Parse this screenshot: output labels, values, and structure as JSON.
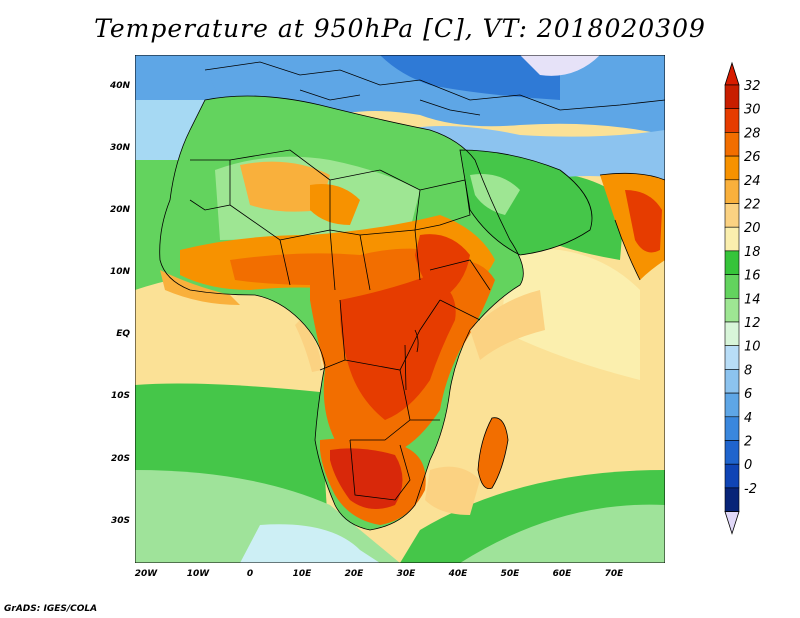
{
  "title": "Temperature at 950hPa [C], VT: 2018020309",
  "credit": "GrADS: IGES/COLA",
  "map": {
    "lat_labels": [
      "40N",
      "30N",
      "20N",
      "10N",
      "EQ",
      "10S",
      "20S",
      "30S"
    ],
    "lon_labels": [
      "20W",
      "10W",
      "0",
      "10E",
      "20E",
      "30E",
      "40E",
      "50E",
      "60E",
      "70E"
    ]
  },
  "colorbar": {
    "labels": [
      "32",
      "30",
      "28",
      "26",
      "24",
      "22",
      "20",
      "18",
      "16",
      "14",
      "12",
      "10",
      "8",
      "6",
      "4",
      "2",
      "0",
      "-2"
    ],
    "colors": [
      "#c81e00",
      "#e63c00",
      "#f26e00",
      "#f79200",
      "#f9b03c",
      "#fbd282",
      "#fbefae",
      "#36c43a",
      "#63d35e",
      "#9ee693",
      "#d8f5d9",
      "#b8ddf7",
      "#8cc3ef",
      "#5ea6e6",
      "#3a87dd",
      "#1f64cd",
      "#0f44b5",
      "#082478"
    ],
    "top_arrow_color": "#d81c00",
    "bottom_arrow_color": "#e0d8f8"
  },
  "palette": {
    "ocean_cool": "#7cc1ec",
    "ocean_green": "#7fd97d",
    "ocean_yellow": "#fbe196",
    "land_hot": "#e84a1c"
  }
}
